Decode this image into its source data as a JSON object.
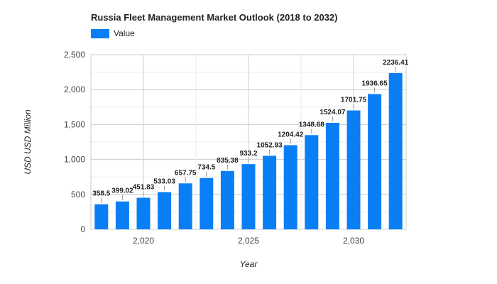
{
  "chart_data": {
    "type": "bar",
    "title": "Russia Fleet Management Market Outlook (2018 to 2032)",
    "xlabel": "Year",
    "ylabel": "USD USD Million",
    "x": [
      2018,
      2019,
      2020,
      2021,
      2022,
      2023,
      2024,
      2025,
      2026,
      2027,
      2028,
      2029,
      2030,
      2031,
      2032
    ],
    "series": [
      {
        "name": "Value",
        "color": "#0a7ff5",
        "values": [
          358.5,
          399.02,
          451.83,
          533.03,
          657.75,
          734.5,
          835.38,
          933.2,
          1052.93,
          1204.42,
          1348.68,
          1524.07,
          1701.75,
          1936.65,
          2236.41
        ]
      }
    ],
    "data_labels": [
      "358.5",
      "399.02",
      "451.83",
      "533.03",
      "657.75",
      "734.5",
      "835.38",
      "933.2",
      "1052.93",
      "1204.42",
      "1348.68",
      "1524.07",
      "1701.75",
      "1936.65",
      "2236.41"
    ],
    "ylim": [
      0,
      2500
    ],
    "y_ticks": [
      0,
      500,
      1000,
      1500,
      2000,
      2500
    ],
    "y_tick_labels": [
      "0",
      "500",
      "1,000",
      "1,500",
      "2,000",
      "2,500"
    ],
    "x_ticks": [
      2020,
      2025,
      2030
    ],
    "x_tick_labels": [
      "2,020",
      "2,025",
      "2,030"
    ],
    "grid": true,
    "legend_position": "top-left"
  }
}
